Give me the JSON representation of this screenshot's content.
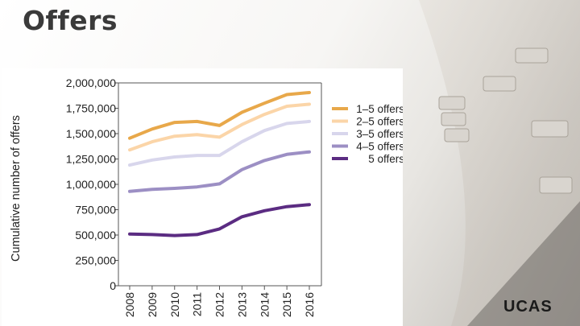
{
  "slide": {
    "title": "Offers",
    "logo_text": "UCAS"
  },
  "chart_data": {
    "type": "line",
    "title": "",
    "xlabel": "",
    "ylabel": "Cumulative number of offers",
    "categories": [
      "2008",
      "2009",
      "2010",
      "2011",
      "2012",
      "2013",
      "2014",
      "2015",
      "2016"
    ],
    "ylim": [
      0,
      2000000
    ],
    "yticks": [
      0,
      250000,
      500000,
      750000,
      1000000,
      1250000,
      1500000,
      1750000,
      2000000
    ],
    "ytick_labels": [
      "0",
      "250,000",
      "500,000",
      "750,000",
      "1,000,000",
      "1,250,000",
      "1,500,000",
      "1,750,000",
      "2,000,000"
    ],
    "grid": false,
    "legend_position": "right",
    "series": [
      {
        "name": "1–5 offers",
        "color": "#e8a84a",
        "values": [
          1455000,
          1545000,
          1610000,
          1620000,
          1580000,
          1710000,
          1800000,
          1885000,
          1905000
        ]
      },
      {
        "name": "2–5 offers",
        "color": "#fbd5a8",
        "values": [
          1340000,
          1420000,
          1475000,
          1490000,
          1465000,
          1590000,
          1690000,
          1770000,
          1790000
        ]
      },
      {
        "name": "3–5 offers",
        "color": "#d8d6ec",
        "values": [
          1190000,
          1240000,
          1270000,
          1285000,
          1285000,
          1420000,
          1530000,
          1600000,
          1620000
        ]
      },
      {
        "name": "4–5 offers",
        "color": "#9c8fc4",
        "values": [
          930000,
          950000,
          960000,
          975000,
          1005000,
          1145000,
          1235000,
          1295000,
          1320000
        ]
      },
      {
        "name": "5 offers",
        "color": "#5b2c82",
        "values": [
          510000,
          505000,
          495000,
          505000,
          560000,
          680000,
          740000,
          780000,
          800000
        ]
      }
    ]
  }
}
